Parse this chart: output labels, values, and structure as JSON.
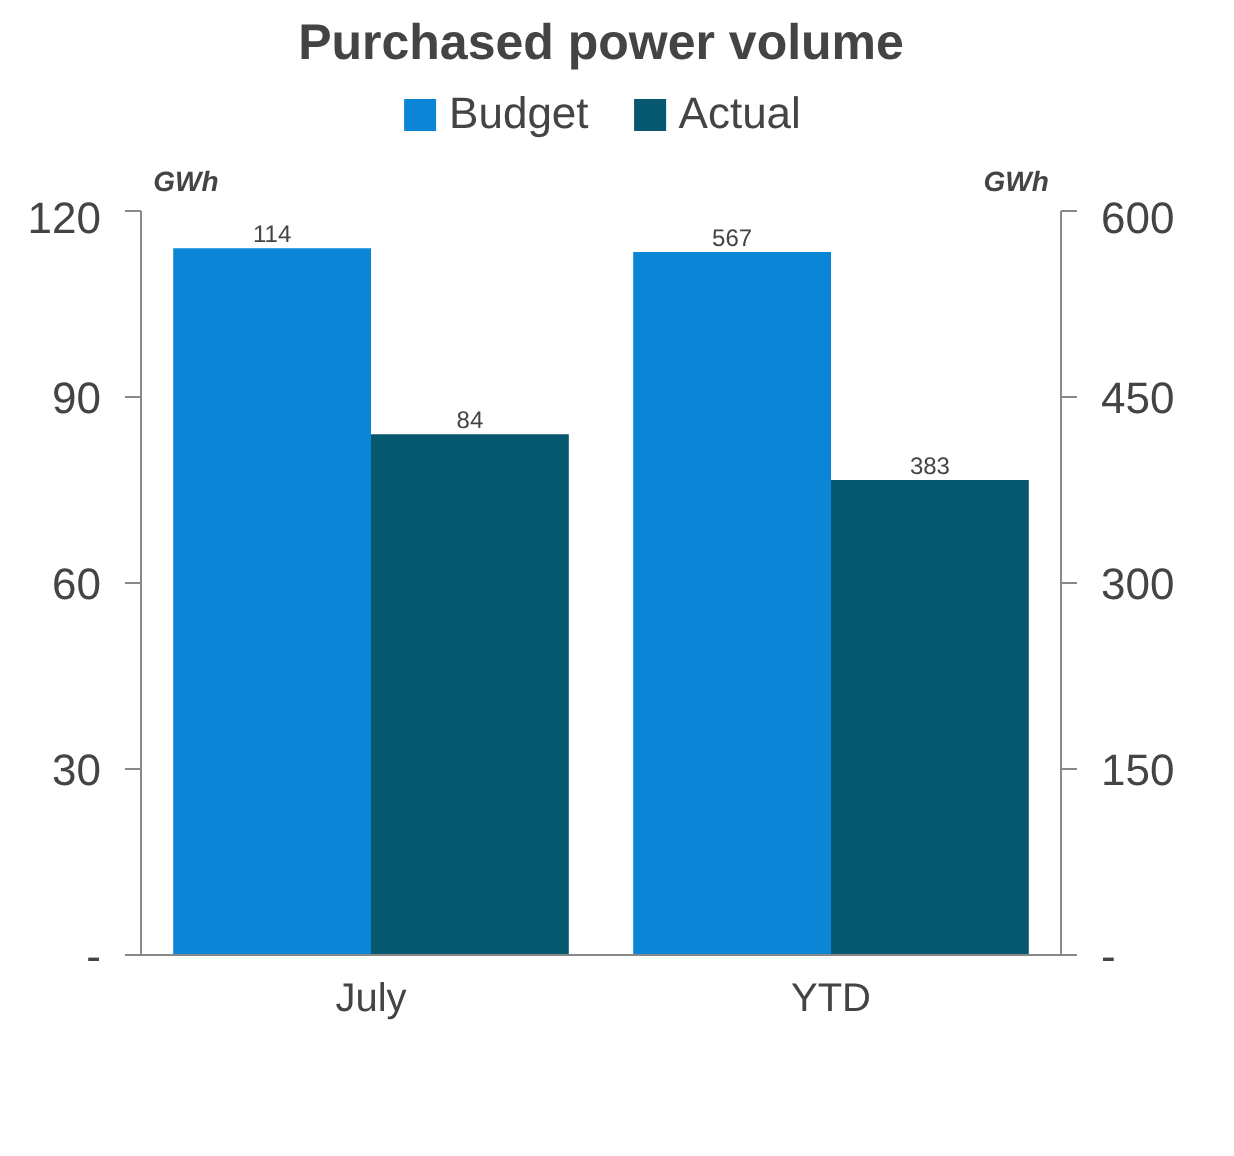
{
  "chart_data": {
    "type": "bar",
    "title": "Purchased power volume",
    "categories": [
      "July",
      "YTD"
    ],
    "series": [
      {
        "name": "Budget",
        "color": "#0b86d6",
        "values": [
          114,
          null
        ]
      },
      {
        "name": "Actual",
        "color": "#06586f",
        "values": [
          84,
          null
        ]
      },
      {
        "color": "#0b86d6",
        "values": [
          null,
          567
        ],
        "axis": "y2"
      },
      {
        "color": "#06586f",
        "values": [
          null,
          383
        ],
        "axis": "y2"
      }
    ],
    "ylabel": "GWh",
    "y2label": "GWh",
    "ylim": [
      0,
      120
    ],
    "yticks": [
      {
        "value": 0,
        "label": "-"
      },
      30,
      60,
      90,
      120
    ],
    "y2lim": [
      0,
      600
    ],
    "y2ticks": [
      {
        "value": 0,
        "label": "-"
      },
      150,
      300,
      450,
      600
    ],
    "data_labels": true,
    "legend": "top",
    "grid": false
  }
}
